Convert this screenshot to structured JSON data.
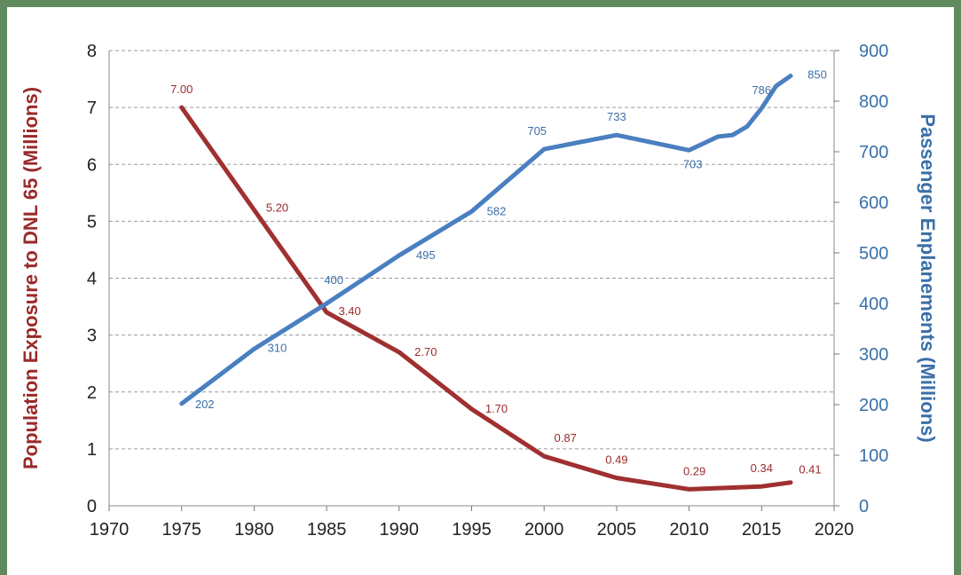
{
  "chart_data": {
    "type": "line",
    "title": "",
    "xlabel": "",
    "x_ticks": [
      "1970",
      "1975",
      "1980",
      "1985",
      "1990",
      "1995",
      "2000",
      "2005",
      "2010",
      "2015",
      "2020"
    ],
    "xlim": [
      1970,
      2020
    ],
    "grid": "horizontal-dashed",
    "left_axis": {
      "label": "Population Exposure to DNL 65 (Millions)",
      "ylim": [
        0,
        8
      ],
      "ticks": [
        "0",
        "1",
        "2",
        "3",
        "4",
        "5",
        "6",
        "7",
        "8"
      ],
      "color": "#9a2a2a"
    },
    "right_axis": {
      "label": "Passenger Enplanements (Millions)",
      "ylim": [
        0,
        900
      ],
      "ticks": [
        "0",
        "100",
        "200",
        "300",
        "400",
        "500",
        "600",
        "700",
        "800",
        "900"
      ],
      "color": "#4a7fc0"
    },
    "series": [
      {
        "axis": "left",
        "color": "#a03030",
        "points": [
          {
            "x": 1975,
            "y": 7.0,
            "label": "7.00"
          },
          {
            "x": 1980,
            "y": 5.2,
            "label": "5.20"
          },
          {
            "x": 1985,
            "y": 3.4,
            "label": "3.40"
          },
          {
            "x": 1990,
            "y": 2.7,
            "label": "2.70"
          },
          {
            "x": 1995,
            "y": 1.7,
            "label": "1.70"
          },
          {
            "x": 2000,
            "y": 0.87,
            "label": "0.87"
          },
          {
            "x": 2005,
            "y": 0.49,
            "label": "0.49"
          },
          {
            "x": 2010,
            "y": 0.29,
            "label": "0.29"
          },
          {
            "x": 2015,
            "y": 0.34,
            "label": "0.34"
          },
          {
            "x": 2017,
            "y": 0.41,
            "label": "0.41"
          }
        ]
      },
      {
        "axis": "right",
        "color": "#4a7fc0",
        "points": [
          {
            "x": 1975,
            "y": 202,
            "label": "202"
          },
          {
            "x": 1980,
            "y": 310,
            "label": "310"
          },
          {
            "x": 1985,
            "y": 400,
            "label": "400"
          },
          {
            "x": 1990,
            "y": 495,
            "label": "495"
          },
          {
            "x": 1995,
            "y": 582,
            "label": "582"
          },
          {
            "x": 2000,
            "y": 705,
            "label": "705"
          },
          {
            "x": 2005,
            "y": 733,
            "label": "733"
          },
          {
            "x": 2010,
            "y": 703,
            "label": "703"
          },
          {
            "x": 2012,
            "y": 730,
            "label": ""
          },
          {
            "x": 2013,
            "y": 733,
            "label": ""
          },
          {
            "x": 2014,
            "y": 750,
            "label": ""
          },
          {
            "x": 2015,
            "y": 786,
            "label": "786"
          },
          {
            "x": 2016,
            "y": 830,
            "label": ""
          },
          {
            "x": 2017,
            "y": 850,
            "label": "850"
          }
        ]
      }
    ]
  }
}
